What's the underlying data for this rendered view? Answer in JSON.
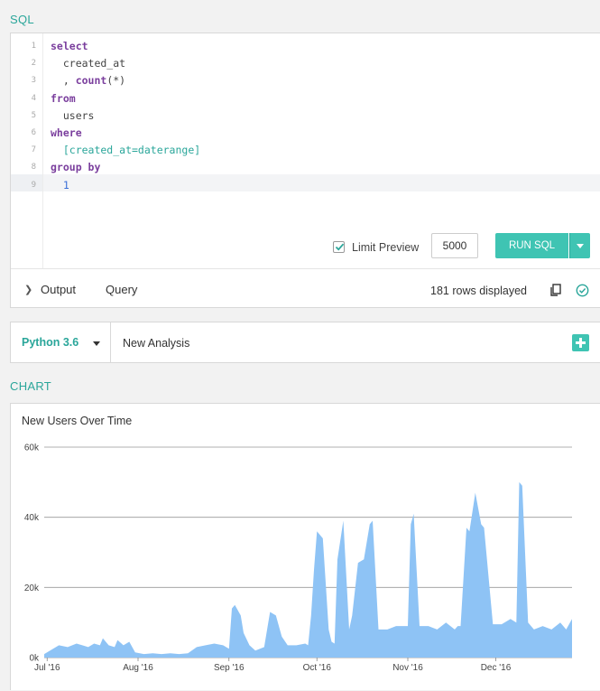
{
  "sql_section": {
    "label": "SQL"
  },
  "editor": {
    "line_numbers": [
      "1",
      "2",
      "3",
      "4",
      "5",
      "6",
      "7",
      "8",
      "9"
    ],
    "lines": [
      {
        "parts": [
          {
            "t": "select",
            "c": "kw"
          }
        ]
      },
      {
        "parts": [
          {
            "t": "  created_at",
            "c": ""
          }
        ]
      },
      {
        "parts": [
          {
            "t": "  , ",
            "c": ""
          },
          {
            "t": "count",
            "c": "kw"
          },
          {
            "t": "(*)",
            "c": ""
          }
        ]
      },
      {
        "parts": [
          {
            "t": "from",
            "c": "kw"
          }
        ]
      },
      {
        "parts": [
          {
            "t": "  users",
            "c": ""
          }
        ]
      },
      {
        "parts": [
          {
            "t": "where",
            "c": "kw"
          }
        ]
      },
      {
        "parts": [
          {
            "t": "  [created_at=daterange]",
            "c": "tmpl"
          }
        ]
      },
      {
        "parts": [
          {
            "t": "group by",
            "c": "kw"
          }
        ]
      },
      {
        "parts": [
          {
            "t": "  1",
            "c": "num"
          }
        ]
      }
    ]
  },
  "controls": {
    "limit_preview_label": "Limit Preview",
    "limit_preview_checked": true,
    "limit_value": "5000",
    "run_label": "RUN SQL"
  },
  "results_bar": {
    "output_tab": "Output",
    "query_tab": "Query",
    "rows_text": "181 rows displayed"
  },
  "python_bar": {
    "version": "Python 3.6",
    "analysis_name": "New Analysis"
  },
  "chart_section": {
    "label": "CHART"
  },
  "chart_data": {
    "type": "area",
    "title": "New Users Over Time",
    "xlabel": "",
    "ylabel": "",
    "ylim": [
      0,
      60000
    ],
    "y_ticks": [
      "0k",
      "20k",
      "40k",
      "60k"
    ],
    "y_tick_values": [
      0,
      20000,
      40000,
      60000
    ],
    "x_ticks": [
      "Jul '16",
      "Aug '16",
      "Sep '16",
      "Oct '16",
      "Nov '16",
      "Dec '16"
    ],
    "x_tick_dates": [
      "2016-07-01",
      "2016-08-01",
      "2016-09-01",
      "2016-10-01",
      "2016-11-01",
      "2016-12-01"
    ],
    "x_range": [
      "2016-06-30",
      "2016-12-27"
    ],
    "grid": true,
    "color": "#8ec3f5",
    "series": [
      {
        "name": "",
        "x": [
          "2016-06-30",
          "2016-07-03",
          "2016-07-05",
          "2016-07-08",
          "2016-07-11",
          "2016-07-13",
          "2016-07-15",
          "2016-07-17",
          "2016-07-19",
          "2016-07-20",
          "2016-07-22",
          "2016-07-24",
          "2016-07-25",
          "2016-07-27",
          "2016-07-29",
          "2016-07-31",
          "2016-08-03",
          "2016-08-06",
          "2016-08-09",
          "2016-08-12",
          "2016-08-15",
          "2016-08-18",
          "2016-08-21",
          "2016-08-24",
          "2016-08-27",
          "2016-08-30",
          "2016-09-01",
          "2016-09-02",
          "2016-09-03",
          "2016-09-05",
          "2016-09-06",
          "2016-09-08",
          "2016-09-10",
          "2016-09-13",
          "2016-09-15",
          "2016-09-17",
          "2016-09-19",
          "2016-09-21",
          "2016-09-24",
          "2016-09-27",
          "2016-09-28",
          "2016-09-29",
          "2016-09-30",
          "2016-10-01",
          "2016-10-03",
          "2016-10-05",
          "2016-10-06",
          "2016-10-07",
          "2016-10-08",
          "2016-10-10",
          "2016-10-12",
          "2016-10-13",
          "2016-10-15",
          "2016-10-17",
          "2016-10-19",
          "2016-10-20",
          "2016-10-22",
          "2016-10-25",
          "2016-10-28",
          "2016-10-31",
          "2016-11-01",
          "2016-11-02",
          "2016-11-03",
          "2016-11-05",
          "2016-11-08",
          "2016-11-11",
          "2016-11-14",
          "2016-11-17",
          "2016-11-18",
          "2016-11-19",
          "2016-11-21",
          "2016-11-22",
          "2016-11-24",
          "2016-11-26",
          "2016-11-27",
          "2016-11-30",
          "2016-12-03",
          "2016-12-06",
          "2016-12-08",
          "2016-12-09",
          "2016-12-10",
          "2016-12-12",
          "2016-12-14",
          "2016-12-17",
          "2016-12-20",
          "2016-12-23",
          "2016-12-25",
          "2016-12-27"
        ],
        "values": [
          1000,
          2500,
          3500,
          3000,
          4000,
          3500,
          3000,
          4000,
          3500,
          5500,
          3500,
          3000,
          5000,
          3500,
          4500,
          1500,
          1000,
          1200,
          1000,
          1200,
          1000,
          1200,
          3000,
          3500,
          4000,
          3500,
          2500,
          14000,
          15000,
          12000,
          7000,
          3500,
          2000,
          3000,
          13000,
          12000,
          6000,
          3500,
          3500,
          4000,
          3500,
          12000,
          25000,
          36000,
          34000,
          8000,
          4500,
          4000,
          28000,
          39000,
          8000,
          12000,
          27000,
          28000,
          38000,
          39000,
          8000,
          8000,
          9000,
          9000,
          9000,
          38000,
          41000,
          9000,
          9000,
          8000,
          10000,
          8000,
          9000,
          9000,
          37000,
          36000,
          47000,
          38000,
          37000,
          9500,
          9500,
          11000,
          10000,
          50000,
          49000,
          10000,
          8000,
          9000,
          8000,
          10000,
          8000,
          11000
        ]
      }
    ]
  }
}
